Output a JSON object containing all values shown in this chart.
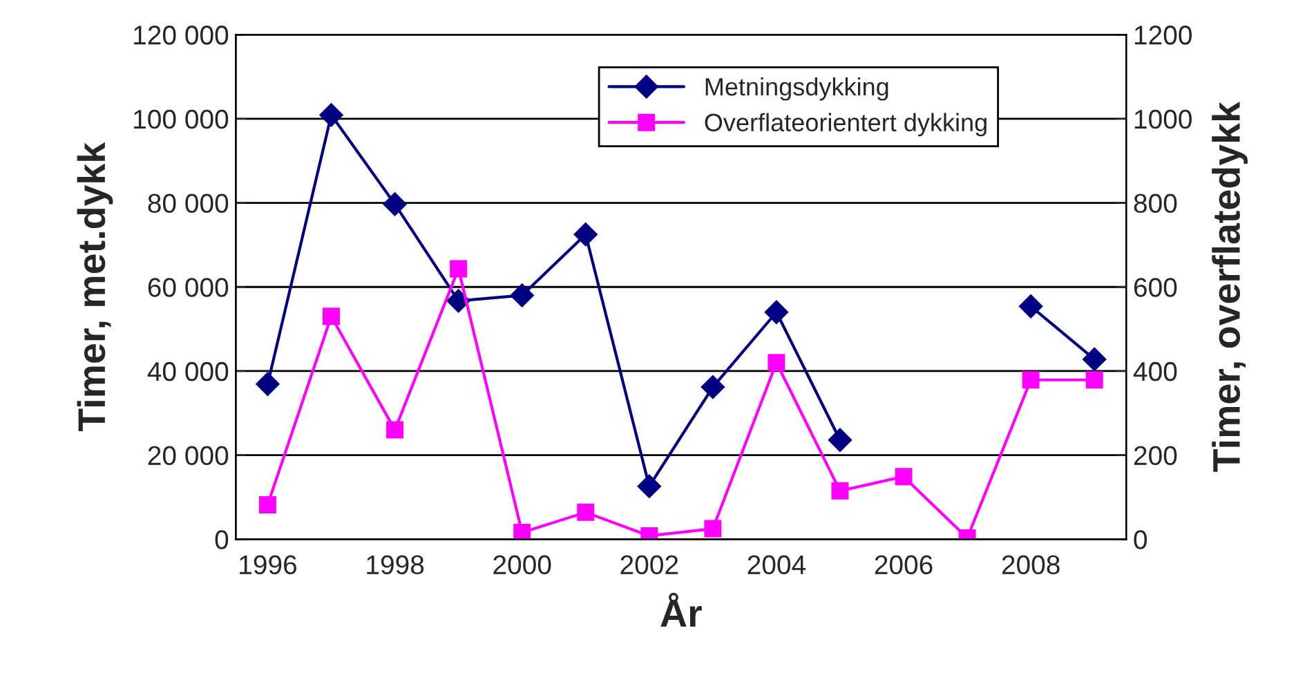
{
  "chart_data": {
    "type": "line",
    "xlabel": "År",
    "ylabel": "Timer, met.dykk",
    "y2label": "Timer, overflatedykk",
    "categories": [
      "1996",
      null,
      "1998",
      null,
      "2000",
      null,
      "2002",
      null,
      "2004",
      null,
      "2006",
      null,
      "2008",
      null
    ],
    "series": [
      {
        "name": "Metningsdykking",
        "color": "#000080",
        "marker": "diamond",
        "values": [
          36900,
          100900,
          79700,
          56700,
          58000,
          72500,
          12600,
          36200,
          54000,
          23600,
          null,
          null,
          55400,
          42800
        ]
      },
      {
        "name": "Overflateorientert dykking",
        "color": "#ff00ff",
        "marker": "square",
        "axis": "y2",
        "values": [
          82,
          530,
          260,
          643,
          16,
          64,
          8,
          25,
          420,
          115,
          149,
          3,
          379,
          379
        ]
      }
    ],
    "ylim": [
      0,
      120000
    ],
    "yticks": [
      {
        "value": 0,
        "label": "0"
      },
      {
        "value": 20000,
        "label": "20 000"
      },
      {
        "value": 40000,
        "label": "40 000"
      },
      {
        "value": 60000,
        "label": "60 000"
      },
      {
        "value": 80000,
        "label": "80 000"
      },
      {
        "value": 100000,
        "label": "100 000"
      },
      {
        "value": 120000,
        "label": "120 000"
      }
    ],
    "y2lim": [
      0,
      1200
    ],
    "y2ticks": [
      0,
      200,
      400,
      600,
      800,
      1000,
      1200
    ],
    "grid": "y",
    "legend": "top right"
  }
}
